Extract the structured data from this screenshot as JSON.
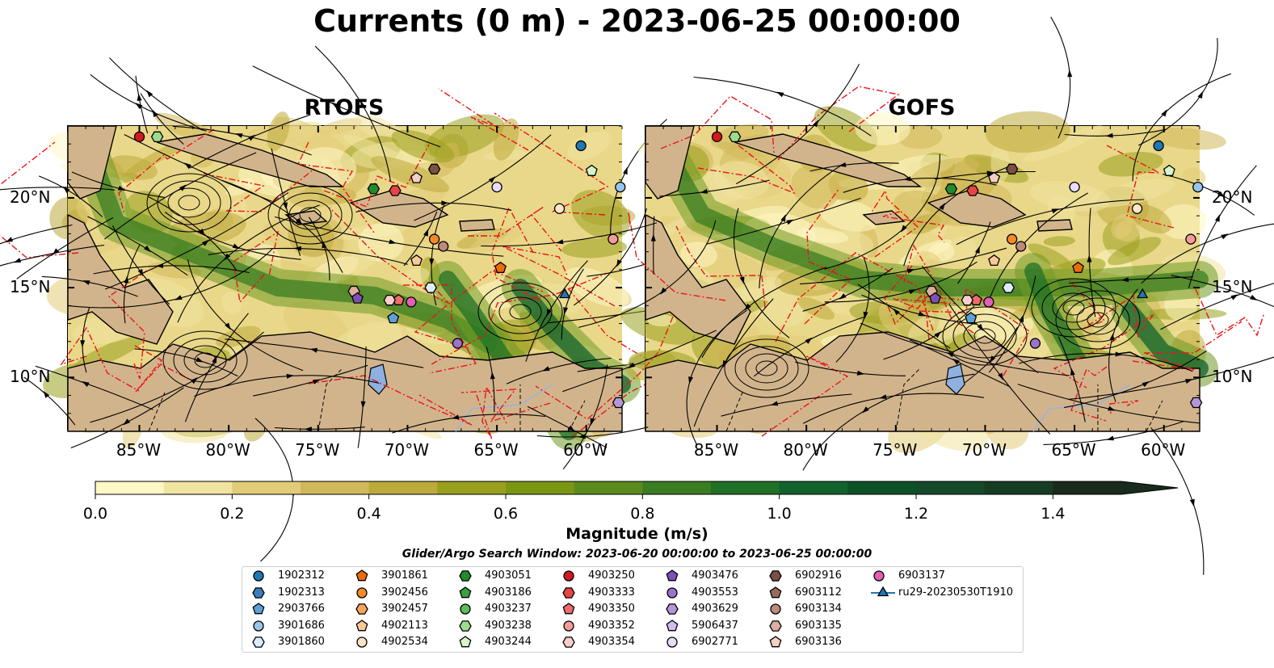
{
  "title": "Currents (0 m) - 2023-06-25 00:00:00",
  "panels": [
    {
      "title": "RTOFS"
    },
    {
      "title": "GOFS"
    }
  ],
  "x_ticks": [
    "85°W",
    "80°W",
    "75°W",
    "70°W",
    "65°W",
    "60°W"
  ],
  "y_ticks": [
    "20°N",
    "15°N",
    "10°N"
  ],
  "colorbar": {
    "label": "Magnitude (m/s)",
    "ticks": [
      "0.0",
      "0.2",
      "0.4",
      "0.6",
      "0.8",
      "1.0",
      "1.2",
      "1.4"
    ],
    "colors": [
      "#fff7c4",
      "#f1e3a0",
      "#e1cc78",
      "#d1b85a",
      "#bdaa3c",
      "#9aa01e",
      "#7b9613",
      "#5b8b1c",
      "#3b7d22",
      "#207026",
      "#11622c",
      "#0d5227",
      "#144a2a",
      "#173c24",
      "#192b1c"
    ]
  },
  "search_window": "Glider/Argo Search Window: 2023-06-20 00:00:00 to 2023-06-25 00:00:00",
  "legend": [
    {
      "label": "1902312",
      "marker": "circle",
      "color": "#1f77b4"
    },
    {
      "label": "1902313",
      "marker": "hexagon",
      "color": "#3a7fb8"
    },
    {
      "label": "2903766",
      "marker": "pentagon",
      "color": "#5d9fd6"
    },
    {
      "label": "3901686",
      "marker": "circle",
      "color": "#98c6ea"
    },
    {
      "label": "3901860",
      "marker": "hexagon",
      "color": "#dcecf9"
    },
    {
      "label": "3901861",
      "marker": "pentagon",
      "color": "#ec6c0c"
    },
    {
      "label": "3902456",
      "marker": "circle",
      "color": "#f5892a"
    },
    {
      "label": "3902457",
      "marker": "hexagon",
      "color": "#f8a45a"
    },
    {
      "label": "4902113",
      "marker": "pentagon",
      "color": "#fbc995"
    },
    {
      "label": "4902534",
      "marker": "circle",
      "color": "#fde4c8"
    },
    {
      "label": "4903051",
      "marker": "hexagon",
      "color": "#228b2c"
    },
    {
      "label": "4903186",
      "marker": "pentagon",
      "color": "#3aa040"
    },
    {
      "label": "4903237",
      "marker": "circle",
      "color": "#5cbc57"
    },
    {
      "label": "4903238",
      "marker": "hexagon",
      "color": "#9bdc8f"
    },
    {
      "label": "4903244",
      "marker": "pentagon",
      "color": "#d6f5c9"
    },
    {
      "label": "4903250",
      "marker": "circle",
      "color": "#d3181f"
    },
    {
      "label": "4903333",
      "marker": "hexagon",
      "color": "#e64545"
    },
    {
      "label": "4903350",
      "marker": "pentagon",
      "color": "#ef6b6b"
    },
    {
      "label": "4903352",
      "marker": "circle",
      "color": "#f59a9a"
    },
    {
      "label": "4903354",
      "marker": "hexagon",
      "color": "#fbcdcd"
    },
    {
      "label": "4903476",
      "marker": "pentagon",
      "color": "#7f4fb8"
    },
    {
      "label": "4903553",
      "marker": "circle",
      "color": "#9b73c9"
    },
    {
      "label": "4903629",
      "marker": "hexagon",
      "color": "#b596d9"
    },
    {
      "label": "5906437",
      "marker": "pentagon",
      "color": "#d2bdef"
    },
    {
      "label": "6902771",
      "marker": "circle",
      "color": "#e9dcfa"
    },
    {
      "label": "6902916",
      "marker": "hexagon",
      "color": "#7a5043"
    },
    {
      "label": "6903112",
      "marker": "pentagon",
      "color": "#9a6a5b"
    },
    {
      "label": "6903134",
      "marker": "circle",
      "color": "#bd8a7b"
    },
    {
      "label": "6903135",
      "marker": "hexagon",
      "color": "#dfaea0"
    },
    {
      "label": "6903136",
      "marker": "pentagon",
      "color": "#f4cfc4"
    },
    {
      "label": "6903137",
      "marker": "circle",
      "color": "#e15fb6"
    },
    {
      "label": "ru29-20230530T1910",
      "marker": "triangle-line",
      "color": "#1f77b4"
    }
  ],
  "chart_data": {
    "type": "map",
    "variable": "Magnitude (m/s)",
    "depth": "0 m",
    "time": "2023-06-25 00:00:00",
    "models": [
      "RTOFS",
      "GOFS"
    ],
    "lon_range": [
      -89,
      -58
    ],
    "lat_range": [
      7,
      24
    ],
    "colorbar_range": [
      0.0,
      1.5
    ],
    "floats": [
      {
        "id": "4903250",
        "lon": -85.0,
        "lat": 23.4
      },
      {
        "id": "4903238",
        "lon": -84.0,
        "lat": 23.4
      },
      {
        "id": "1902312",
        "lon": -60.3,
        "lat": 22.9
      },
      {
        "id": "4903244",
        "lon": -59.7,
        "lat": 21.5
      },
      {
        "id": "3901686",
        "lon": -58.1,
        "lat": 20.6
      },
      {
        "id": "6902916",
        "lon": -68.5,
        "lat": 21.6
      },
      {
        "id": "6903136",
        "lon": -69.5,
        "lat": 21.1
      },
      {
        "id": "4903051",
        "lon": -71.9,
        "lat": 20.5
      },
      {
        "id": "4903333",
        "lon": -70.7,
        "lat": 20.4
      },
      {
        "id": "6902771",
        "lon": -65.0,
        "lat": 20.6
      },
      {
        "id": "4902534",
        "lon": -61.5,
        "lat": 19.4
      },
      {
        "id": "3902456",
        "lon": -68.5,
        "lat": 17.7
      },
      {
        "id": "6903134",
        "lon": -68.0,
        "lat": 17.3
      },
      {
        "id": "4903352",
        "lon": -58.5,
        "lat": 17.7
      },
      {
        "id": "3901861",
        "lon": -64.8,
        "lat": 16.1
      },
      {
        "id": "4902113",
        "lon": -69.5,
        "lat": 16.5
      },
      {
        "id": "3901860",
        "lon": -68.7,
        "lat": 15.0
      },
      {
        "id": "6903135",
        "lon": -73.0,
        "lat": 14.8
      },
      {
        "id": "4903476",
        "lon": -72.8,
        "lat": 14.4
      },
      {
        "id": "4903350",
        "lon": -70.5,
        "lat": 14.3
      },
      {
        "id": "4903354",
        "lon": -71.0,
        "lat": 14.3
      },
      {
        "id": "6903137",
        "lon": -69.8,
        "lat": 14.2
      },
      {
        "id": "2903766",
        "lon": -70.8,
        "lat": 13.3
      },
      {
        "id": "4903553",
        "lon": -67.2,
        "lat": 11.9
      },
      {
        "id": "4903629",
        "lon": -58.2,
        "lat": 8.6
      },
      {
        "id": "ru29-20230530T1910",
        "lon": -61.2,
        "lat": 14.6
      }
    ]
  }
}
